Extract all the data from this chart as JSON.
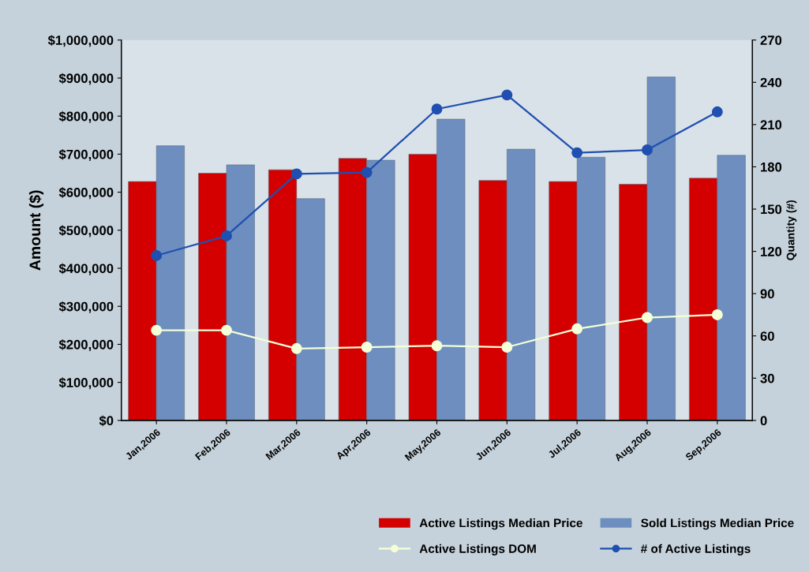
{
  "chart_data": {
    "type": "bar",
    "ylabel": "Amount ($)",
    "y2label": "Quantity (#)",
    "categories": [
      "Jan,2006",
      "Feb,2006",
      "Mar,2006",
      "Apr,2006",
      "May,2006",
      "Jun,2006",
      "Jul,2006",
      "Aug,2006",
      "Sep,2006"
    ],
    "series": [
      {
        "name": "Active Listings Median Price",
        "color": "#d40000",
        "values": [
          628000,
          650000,
          659000,
          689000,
          700000,
          631000,
          628000,
          621000,
          637000
        ]
      },
      {
        "name": "Sold Listings Median Price",
        "color": "#6d8ebf",
        "values": [
          722000,
          672000,
          583000,
          684000,
          792000,
          713000,
          692000,
          903000,
          697000
        ]
      },
      {
        "name": "Active Listings DOM",
        "type": "line",
        "axis": "y2",
        "color": "#f4ffd8",
        "marker": "circle",
        "values": [
          64,
          64,
          51,
          52,
          53,
          52,
          65,
          73,
          75
        ]
      },
      {
        "name": "# of Active Listings",
        "type": "line",
        "axis": "y2",
        "color": "#1f4fb0",
        "marker": "circle",
        "values": [
          117,
          131,
          175,
          176,
          221,
          231,
          190,
          192,
          219
        ]
      }
    ],
    "ylim": [
      0,
      1000000
    ],
    "yticks": [
      {
        "value": 0,
        "label": "$0"
      },
      {
        "value": 100000,
        "label": "$100,000"
      },
      {
        "value": 200000,
        "label": "$200,000"
      },
      {
        "value": 300000,
        "label": "$300,000"
      },
      {
        "value": 400000,
        "label": "$400,000"
      },
      {
        "value": 500000,
        "label": "$500,000"
      },
      {
        "value": 600000,
        "label": "$600,000"
      },
      {
        "value": 700000,
        "label": "$700,000"
      },
      {
        "value": 800000,
        "label": "$800,000"
      },
      {
        "value": 900000,
        "label": "$900,000"
      },
      {
        "value": 1000000,
        "label": "$1,000,000"
      }
    ],
    "y2lim": [
      0,
      270
    ],
    "y2ticks": [
      0,
      30,
      60,
      90,
      120,
      150,
      180,
      210,
      240,
      270
    ],
    "legend": "bottom right",
    "grid": false
  }
}
